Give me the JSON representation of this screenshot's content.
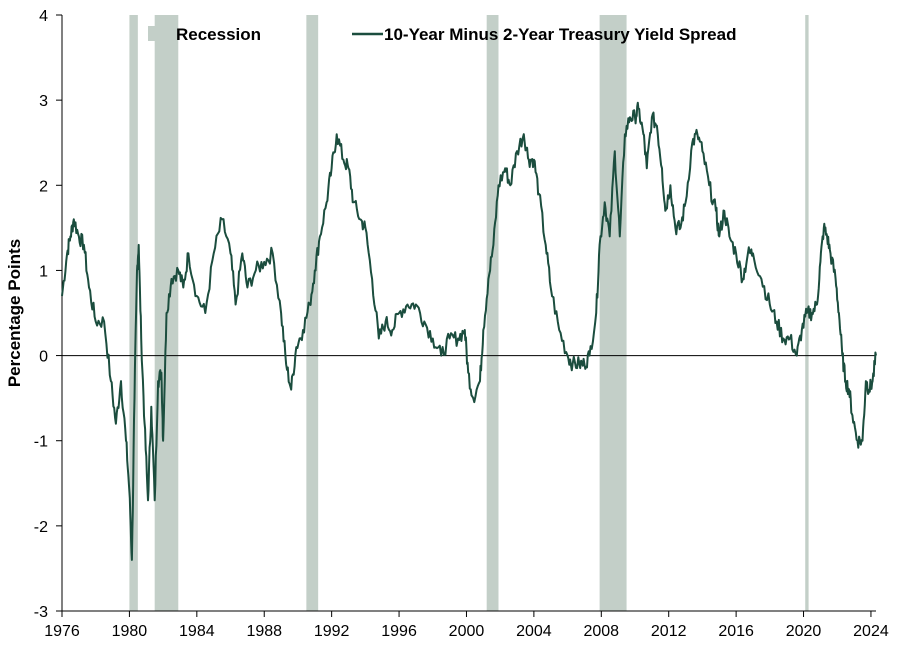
{
  "chart_data": {
    "type": "line",
    "title": "",
    "xlabel": "",
    "ylabel": "Percentage Points",
    "xlim": [
      1976,
      2024.3
    ],
    "ylim": [
      -3,
      4
    ],
    "x_ticks": [
      "1976",
      "1980",
      "1984",
      "1988",
      "1992",
      "1996",
      "2000",
      "2004",
      "2008",
      "2012",
      "2016",
      "2020",
      "2024"
    ],
    "y_ticks": [
      "4",
      "3",
      "2",
      "1",
      "0",
      "-1",
      "-2",
      "-3"
    ],
    "grid": false,
    "legend_position": "top",
    "recession_label": "Recession",
    "recession_color": "#c3cfc8",
    "series_color": "#1b4d3e",
    "recessions": [
      [
        1980.0,
        1980.5
      ],
      [
        1981.5,
        1982.9
      ],
      [
        1990.5,
        1991.2
      ],
      [
        2001.2,
        2001.9
      ],
      [
        2007.9,
        2009.5
      ],
      [
        2020.1,
        2020.3
      ]
    ],
    "series": [
      {
        "name": "10-Year Minus 2-Year Treasury Yield Spread",
        "points": [
          [
            1976.0,
            0.7
          ],
          [
            1976.3,
            1.2
          ],
          [
            1976.5,
            1.4
          ],
          [
            1976.7,
            1.6
          ],
          [
            1977.0,
            1.4
          ],
          [
            1977.3,
            1.3
          ],
          [
            1977.6,
            0.8
          ],
          [
            1978.0,
            0.4
          ],
          [
            1978.5,
            0.4
          ],
          [
            1978.9,
            -0.3
          ],
          [
            1979.2,
            -0.8
          ],
          [
            1979.5,
            -0.3
          ],
          [
            1979.8,
            -1.0
          ],
          [
            1980.0,
            -1.6
          ],
          [
            1980.15,
            -2.4
          ],
          [
            1980.3,
            -0.5
          ],
          [
            1980.45,
            1.0
          ],
          [
            1980.55,
            1.3
          ],
          [
            1980.7,
            0.2
          ],
          [
            1980.9,
            -0.8
          ],
          [
            1981.1,
            -1.7
          ],
          [
            1981.3,
            -0.6
          ],
          [
            1981.5,
            -1.7
          ],
          [
            1981.7,
            -0.3
          ],
          [
            1981.9,
            -0.2
          ],
          [
            1982.0,
            -1.0
          ],
          [
            1982.2,
            0.5
          ],
          [
            1982.5,
            0.9
          ],
          [
            1982.9,
            1.0
          ],
          [
            1983.2,
            0.8
          ],
          [
            1983.5,
            1.2
          ],
          [
            1984.0,
            0.7
          ],
          [
            1984.5,
            0.5
          ],
          [
            1985.0,
            1.2
          ],
          [
            1985.5,
            1.6
          ],
          [
            1986.0,
            1.2
          ],
          [
            1986.3,
            0.6
          ],
          [
            1986.7,
            1.2
          ],
          [
            1987.0,
            0.8
          ],
          [
            1987.5,
            1.0
          ],
          [
            1988.0,
            1.1
          ],
          [
            1988.5,
            1.2
          ],
          [
            1989.0,
            0.5
          ],
          [
            1989.3,
            -0.1
          ],
          [
            1989.6,
            -0.4
          ],
          [
            1989.9,
            0.1
          ],
          [
            1990.3,
            0.3
          ],
          [
            1990.7,
            0.6
          ],
          [
            1991.0,
            1.0
          ],
          [
            1991.3,
            1.4
          ],
          [
            1991.7,
            1.8
          ],
          [
            1992.0,
            2.2
          ],
          [
            1992.3,
            2.6
          ],
          [
            1992.7,
            2.3
          ],
          [
            1993.0,
            2.2
          ],
          [
            1993.3,
            1.8
          ],
          [
            1993.7,
            1.6
          ],
          [
            1994.0,
            1.5
          ],
          [
            1994.4,
            0.9
          ],
          [
            1994.8,
            0.2
          ],
          [
            1995.2,
            0.4
          ],
          [
            1995.6,
            0.3
          ],
          [
            1996.0,
            0.5
          ],
          [
            1996.5,
            0.6
          ],
          [
            1997.0,
            0.6
          ],
          [
            1997.5,
            0.4
          ],
          [
            1998.0,
            0.2
          ],
          [
            1998.5,
            0.0
          ],
          [
            1999.0,
            0.2
          ],
          [
            1999.5,
            0.2
          ],
          [
            1999.9,
            0.3
          ],
          [
            2000.1,
            -0.2
          ],
          [
            2000.4,
            -0.5
          ],
          [
            2000.8,
            -0.3
          ],
          [
            2001.0,
            0.3
          ],
          [
            2001.3,
            0.9
          ],
          [
            2001.6,
            1.3
          ],
          [
            2001.9,
            2.0
          ],
          [
            2002.3,
            2.2
          ],
          [
            2002.6,
            2.0
          ],
          [
            2003.0,
            2.4
          ],
          [
            2003.4,
            2.6
          ],
          [
            2003.7,
            2.3
          ],
          [
            2004.0,
            2.3
          ],
          [
            2004.3,
            1.9
          ],
          [
            2004.7,
            1.3
          ],
          [
            2005.0,
            0.8
          ],
          [
            2005.5,
            0.3
          ],
          [
            2006.0,
            0.0
          ],
          [
            2006.3,
            -0.1
          ],
          [
            2006.7,
            -0.1
          ],
          [
            2007.0,
            -0.1
          ],
          [
            2007.3,
            0.0
          ],
          [
            2007.7,
            0.5
          ],
          [
            2007.9,
            1.3
          ],
          [
            2008.2,
            1.8
          ],
          [
            2008.5,
            1.4
          ],
          [
            2008.8,
            2.4
          ],
          [
            2009.1,
            1.4
          ],
          [
            2009.4,
            2.6
          ],
          [
            2009.7,
            2.8
          ],
          [
            2010.0,
            2.8
          ],
          [
            2010.2,
            2.9
          ],
          [
            2010.5,
            2.6
          ],
          [
            2010.7,
            2.2
          ],
          [
            2011.0,
            2.8
          ],
          [
            2011.3,
            2.7
          ],
          [
            2011.6,
            2.2
          ],
          [
            2011.8,
            1.7
          ],
          [
            2012.1,
            2.0
          ],
          [
            2012.4,
            1.5
          ],
          [
            2012.7,
            1.5
          ],
          [
            2013.0,
            1.8
          ],
          [
            2013.4,
            2.5
          ],
          [
            2013.7,
            2.6
          ],
          [
            2014.0,
            2.4
          ],
          [
            2014.4,
            2.0
          ],
          [
            2014.8,
            1.7
          ],
          [
            2015.0,
            1.4
          ],
          [
            2015.3,
            1.7
          ],
          [
            2015.6,
            1.4
          ],
          [
            2016.0,
            1.2
          ],
          [
            2016.4,
            0.9
          ],
          [
            2016.7,
            1.2
          ],
          [
            2017.0,
            1.2
          ],
          [
            2017.5,
            0.9
          ],
          [
            2018.0,
            0.6
          ],
          [
            2018.4,
            0.4
          ],
          [
            2018.8,
            0.2
          ],
          [
            2019.2,
            0.2
          ],
          [
            2019.6,
            0.0
          ],
          [
            2019.9,
            0.3
          ],
          [
            2020.2,
            0.5
          ],
          [
            2020.5,
            0.5
          ],
          [
            2020.8,
            0.6
          ],
          [
            2021.0,
            1.1
          ],
          [
            2021.2,
            1.5
          ],
          [
            2021.4,
            1.4
          ],
          [
            2021.6,
            1.2
          ],
          [
            2021.9,
            0.9
          ],
          [
            2022.1,
            0.5
          ],
          [
            2022.3,
            0.0
          ],
          [
            2022.5,
            -0.3
          ],
          [
            2022.7,
            -0.4
          ],
          [
            2022.9,
            -0.7
          ],
          [
            2023.2,
            -1.0
          ],
          [
            2023.5,
            -1.0
          ],
          [
            2023.7,
            -0.3
          ],
          [
            2023.9,
            -0.4
          ],
          [
            2024.1,
            -0.3
          ],
          [
            2024.3,
            0.0
          ]
        ]
      }
    ]
  }
}
